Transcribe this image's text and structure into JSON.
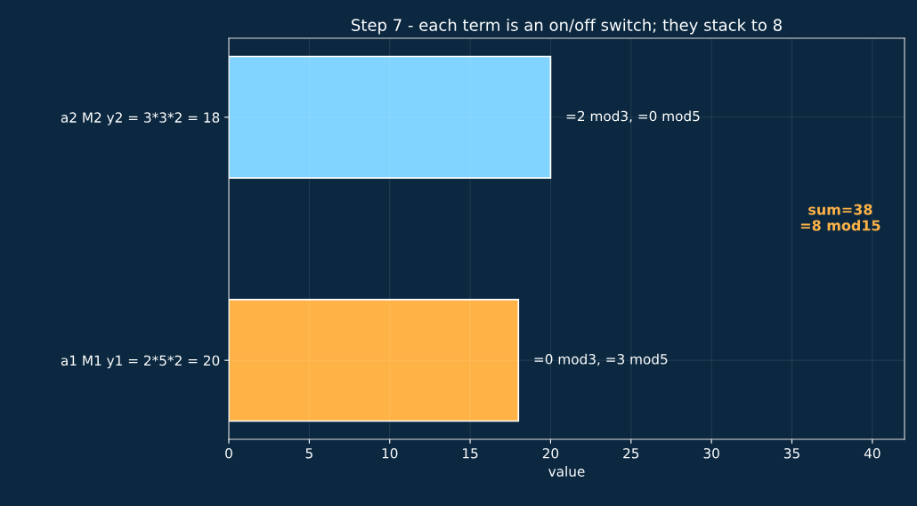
{
  "chart_data": {
    "type": "bar",
    "orientation": "horizontal",
    "title": "Step 7 - each term is an on/off switch; they stack to 8",
    "categories": [
      "a2 M2 y2 = 3*3*2 = 18",
      "a1 M1 y1 = 2*5*2 = 20"
    ],
    "values": [
      20,
      18
    ],
    "colors": [
      "#80d4ff",
      "#ffb347"
    ],
    "xlabel": "value",
    "xlim": [
      0,
      42
    ],
    "xticks": [
      0,
      5,
      10,
      15,
      20,
      25,
      30,
      35,
      40
    ],
    "grid": true,
    "annotations": [
      {
        "text": "=2 mod3, =0 mod5",
        "x": 20,
        "y": "a2 M2 y2 = 3*3*2 = 18"
      },
      {
        "text": "=0 mod3, =3 mod5",
        "x": 18,
        "y": "a1 M1 y1 = 2*5*2 = 20"
      },
      "sum=38\n=8 mod15"
    ]
  }
}
